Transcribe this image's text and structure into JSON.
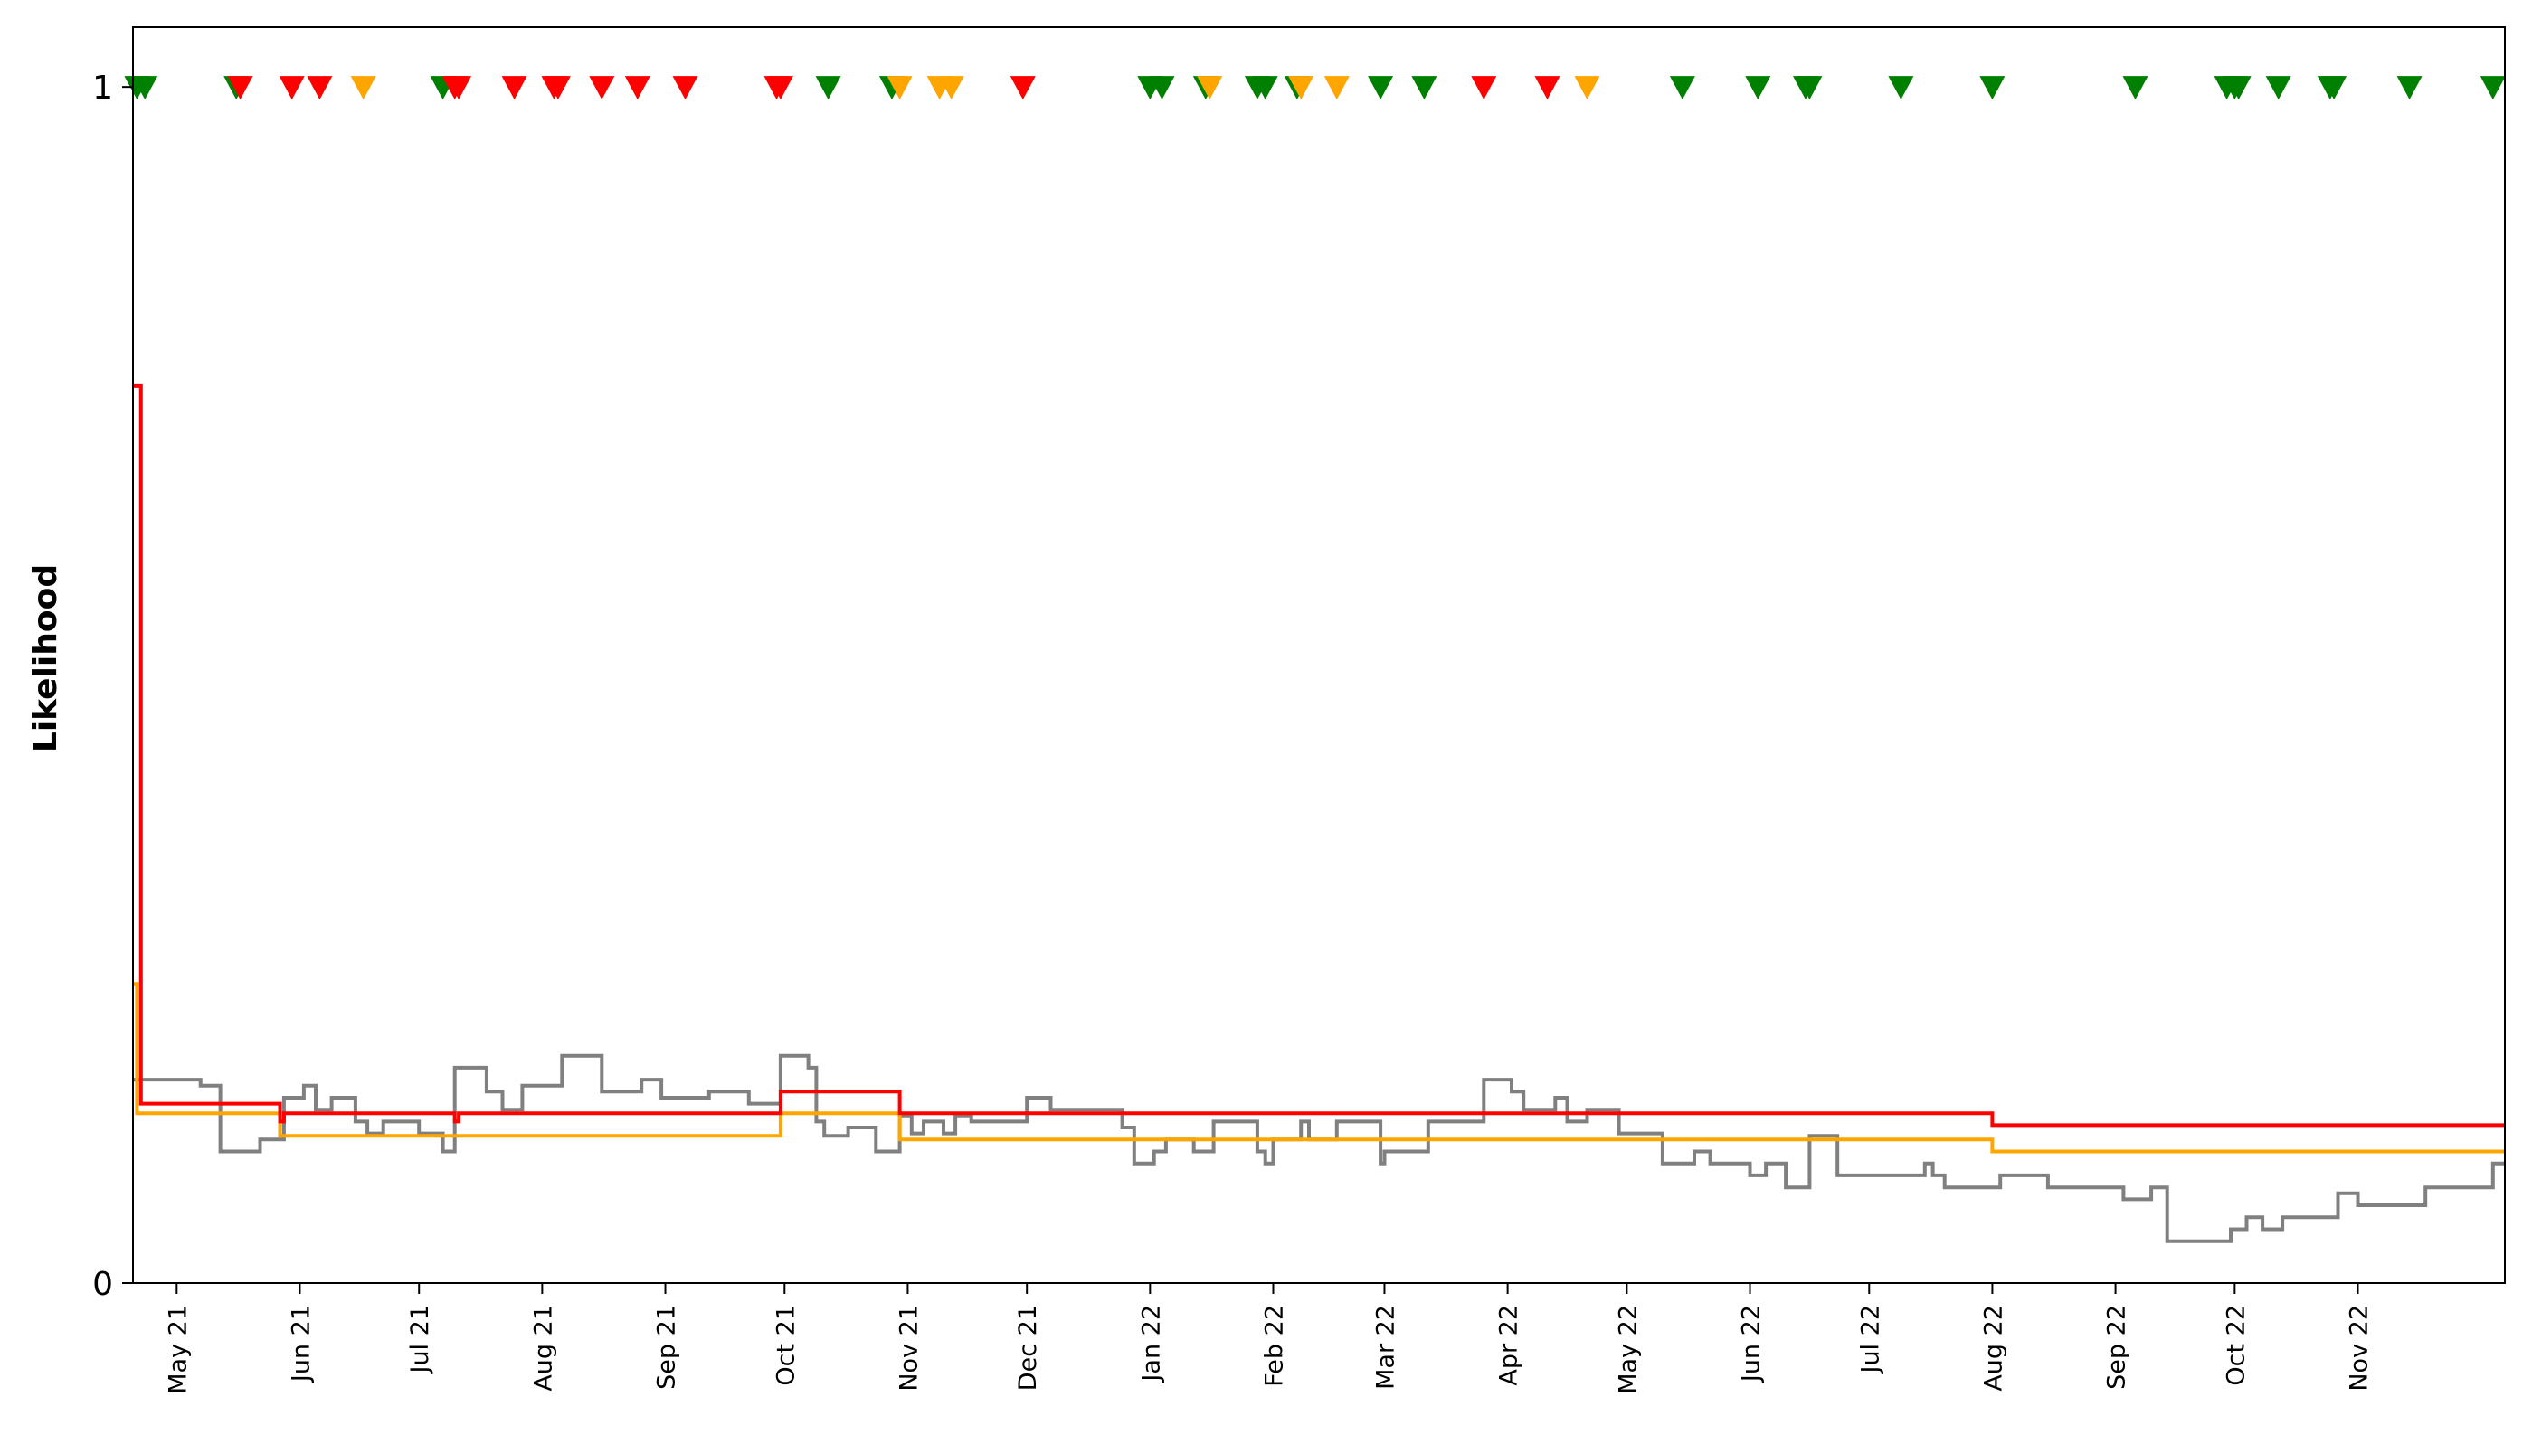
{
  "chart_data": {
    "type": "line",
    "title": "",
    "xlabel": "",
    "ylabel": "Likelihood",
    "xlim": [
      "2021-04-20",
      "2022-12-08"
    ],
    "ylim": [
      0,
      1.05
    ],
    "grid": false,
    "legend": "none",
    "y_ticks": [
      {
        "value": 0,
        "label": "0"
      },
      {
        "value": 1,
        "label": "1"
      }
    ],
    "x_ticks": [
      {
        "date": "2021-05-01",
        "label": "May 21"
      },
      {
        "date": "2021-06-01",
        "label": "Jun 21"
      },
      {
        "date": "2021-07-01",
        "label": "Jul 21"
      },
      {
        "date": "2021-08-01",
        "label": "Aug 21"
      },
      {
        "date": "2021-09-01",
        "label": "Sep 21"
      },
      {
        "date": "2021-10-01",
        "label": "Oct 21"
      },
      {
        "date": "2021-11-01",
        "label": "Nov 21"
      },
      {
        "date": "2021-12-01",
        "label": "Dec 21"
      },
      {
        "date": "2022-01-01",
        "label": "Jan 22"
      },
      {
        "date": "2022-02-01",
        "label": "Feb 22"
      },
      {
        "date": "2022-03-01",
        "label": "Mar 22"
      },
      {
        "date": "2022-04-01",
        "label": "Apr 22"
      },
      {
        "date": "2022-05-01",
        "label": "May 22"
      },
      {
        "date": "2022-06-01",
        "label": "Jun 22"
      },
      {
        "date": "2022-07-01",
        "label": "Jul 22"
      },
      {
        "date": "2022-08-01",
        "label": "Aug 22"
      },
      {
        "date": "2022-09-01",
        "label": "Sep 22"
      },
      {
        "date": "2022-10-01",
        "label": "Oct 22"
      },
      {
        "date": "2022-11-01",
        "label": "Nov 22"
      }
    ],
    "series": [
      {
        "color": "#ff0000",
        "step": true,
        "points": [
          [
            "2021-04-20",
            0.75
          ],
          [
            "2021-04-22",
            0.15
          ],
          [
            "2021-05-27",
            0.135
          ],
          [
            "2021-05-28",
            0.142
          ],
          [
            "2021-07-10",
            0.135
          ],
          [
            "2021-07-11",
            0.142
          ],
          [
            "2021-09-30",
            0.16
          ],
          [
            "2021-10-30",
            0.142
          ],
          [
            "2022-08-01",
            0.132
          ],
          [
            "2022-12-08",
            0.132
          ]
        ]
      },
      {
        "color": "#ffa500",
        "step": true,
        "points": [
          [
            "2021-04-20",
            0.25
          ],
          [
            "2021-04-21",
            0.142
          ],
          [
            "2021-05-27",
            0.123
          ],
          [
            "2021-09-30",
            0.142
          ],
          [
            "2021-10-30",
            0.12
          ],
          [
            "2022-08-01",
            0.11
          ],
          [
            "2022-12-08",
            0.11
          ]
        ]
      },
      {
        "color": "#808080",
        "step": true,
        "points": [
          [
            "2021-04-20",
            0.17
          ],
          [
            "2021-05-07",
            0.165
          ],
          [
            "2021-05-12",
            0.11
          ],
          [
            "2021-05-22",
            0.12
          ],
          [
            "2021-05-28",
            0.155
          ],
          [
            "2021-06-02",
            0.165
          ],
          [
            "2021-06-05",
            0.145
          ],
          [
            "2021-06-09",
            0.155
          ],
          [
            "2021-06-15",
            0.135
          ],
          [
            "2021-06-18",
            0.125
          ],
          [
            "2021-06-22",
            0.135
          ],
          [
            "2021-07-01",
            0.125
          ],
          [
            "2021-07-07",
            0.11
          ],
          [
            "2021-07-10",
            0.18
          ],
          [
            "2021-07-18",
            0.16
          ],
          [
            "2021-07-22",
            0.145
          ],
          [
            "2021-07-27",
            0.165
          ],
          [
            "2021-08-06",
            0.19
          ],
          [
            "2021-08-16",
            0.16
          ],
          [
            "2021-08-26",
            0.17
          ],
          [
            "2021-08-31",
            0.155
          ],
          [
            "2021-09-12",
            0.16
          ],
          [
            "2021-09-22",
            0.15
          ],
          [
            "2021-09-30",
            0.19
          ],
          [
            "2021-10-07",
            0.18
          ],
          [
            "2021-10-09",
            0.135
          ],
          [
            "2021-10-11",
            0.123
          ],
          [
            "2021-10-17",
            0.13
          ],
          [
            "2021-10-24",
            0.11
          ],
          [
            "2021-10-30",
            0.14
          ],
          [
            "2021-11-02",
            0.125
          ],
          [
            "2021-11-05",
            0.135
          ],
          [
            "2021-11-10",
            0.125
          ],
          [
            "2021-11-13",
            0.14
          ],
          [
            "2021-11-17",
            0.135
          ],
          [
            "2021-11-23",
            0.135
          ],
          [
            "2021-12-01",
            0.155
          ],
          [
            "2021-12-07",
            0.145
          ],
          [
            "2021-12-25",
            0.13
          ],
          [
            "2021-12-28",
            0.1
          ],
          [
            "2022-01-02",
            0.11
          ],
          [
            "2022-01-05",
            0.12
          ],
          [
            "2022-01-12",
            0.11
          ],
          [
            "2022-01-17",
            0.135
          ],
          [
            "2022-01-28",
            0.11
          ],
          [
            "2022-01-30",
            0.1
          ],
          [
            "2022-02-01",
            0.12
          ],
          [
            "2022-02-08",
            0.135
          ],
          [
            "2022-02-10",
            0.12
          ],
          [
            "2022-02-17",
            0.135
          ],
          [
            "2022-02-28",
            0.1
          ],
          [
            "2022-03-01",
            0.11
          ],
          [
            "2022-03-12",
            0.135
          ],
          [
            "2022-03-26",
            0.17
          ],
          [
            "2022-04-02",
            0.16
          ],
          [
            "2022-04-05",
            0.145
          ],
          [
            "2022-04-13",
            0.155
          ],
          [
            "2022-04-16",
            0.135
          ],
          [
            "2022-04-21",
            0.145
          ],
          [
            "2022-04-29",
            0.125
          ],
          [
            "2022-05-10",
            0.1
          ],
          [
            "2022-05-18",
            0.11
          ],
          [
            "2022-05-22",
            0.1
          ],
          [
            "2022-06-01",
            0.09
          ],
          [
            "2022-06-05",
            0.1
          ],
          [
            "2022-06-10",
            0.08
          ],
          [
            "2022-06-16",
            0.123
          ],
          [
            "2022-06-23",
            0.09
          ],
          [
            "2022-07-15",
            0.1
          ],
          [
            "2022-07-17",
            0.09
          ],
          [
            "2022-07-20",
            0.08
          ],
          [
            "2022-08-03",
            0.09
          ],
          [
            "2022-08-15",
            0.08
          ],
          [
            "2022-09-03",
            0.07
          ],
          [
            "2022-09-10",
            0.08
          ],
          [
            "2022-09-14",
            0.035
          ],
          [
            "2022-09-30",
            0.045
          ],
          [
            "2022-10-04",
            0.055
          ],
          [
            "2022-10-08",
            0.045
          ],
          [
            "2022-10-13",
            0.055
          ],
          [
            "2022-10-27",
            0.075
          ],
          [
            "2022-11-01",
            0.065
          ],
          [
            "2022-11-18",
            0.08
          ],
          [
            "2022-12-05",
            0.1
          ],
          [
            "2022-12-08",
            0.1
          ]
        ]
      }
    ],
    "markers": {
      "shape": "triangle-down",
      "y": 1,
      "points": [
        {
          "date": "2021-04-21",
          "color": "#008000"
        },
        {
          "date": "2021-04-23",
          "color": "#008000"
        },
        {
          "date": "2021-05-16",
          "color": "#008000"
        },
        {
          "date": "2021-05-17",
          "color": "#ff0000"
        },
        {
          "date": "2021-05-30",
          "color": "#ff0000"
        },
        {
          "date": "2021-06-06",
          "color": "#ff0000"
        },
        {
          "date": "2021-06-17",
          "color": "#ffa500"
        },
        {
          "date": "2021-07-07",
          "color": "#008000"
        },
        {
          "date": "2021-07-10",
          "color": "#ff0000"
        },
        {
          "date": "2021-07-11",
          "color": "#ff0000"
        },
        {
          "date": "2021-07-25",
          "color": "#ff0000"
        },
        {
          "date": "2021-08-04",
          "color": "#ff0000"
        },
        {
          "date": "2021-08-05",
          "color": "#ff0000"
        },
        {
          "date": "2021-08-16",
          "color": "#ff0000"
        },
        {
          "date": "2021-08-25",
          "color": "#ff0000"
        },
        {
          "date": "2021-09-06",
          "color": "#ff0000"
        },
        {
          "date": "2021-09-29",
          "color": "#ff0000"
        },
        {
          "date": "2021-09-30",
          "color": "#ff0000"
        },
        {
          "date": "2021-10-12",
          "color": "#008000"
        },
        {
          "date": "2021-10-28",
          "color": "#008000"
        },
        {
          "date": "2021-10-30",
          "color": "#ffa500"
        },
        {
          "date": "2021-11-09",
          "color": "#ffa500"
        },
        {
          "date": "2021-11-12",
          "color": "#ffa500"
        },
        {
          "date": "2021-11-30",
          "color": "#ff0000"
        },
        {
          "date": "2022-01-01",
          "color": "#008000"
        },
        {
          "date": "2022-01-04",
          "color": "#008000"
        },
        {
          "date": "2022-01-15",
          "color": "#008000"
        },
        {
          "date": "2022-01-16",
          "color": "#ffa500"
        },
        {
          "date": "2022-01-28",
          "color": "#008000"
        },
        {
          "date": "2022-01-30",
          "color": "#008000"
        },
        {
          "date": "2022-02-07",
          "color": "#008000"
        },
        {
          "date": "2022-02-08",
          "color": "#ffa500"
        },
        {
          "date": "2022-02-17",
          "color": "#ffa500"
        },
        {
          "date": "2022-02-28",
          "color": "#008000"
        },
        {
          "date": "2022-03-11",
          "color": "#008000"
        },
        {
          "date": "2022-03-26",
          "color": "#ff0000"
        },
        {
          "date": "2022-04-11",
          "color": "#ff0000"
        },
        {
          "date": "2022-04-21",
          "color": "#ffa500"
        },
        {
          "date": "2022-05-15",
          "color": "#008000"
        },
        {
          "date": "2022-06-03",
          "color": "#008000"
        },
        {
          "date": "2022-06-15",
          "color": "#008000"
        },
        {
          "date": "2022-06-16",
          "color": "#008000"
        },
        {
          "date": "2022-07-09",
          "color": "#008000"
        },
        {
          "date": "2022-08-01",
          "color": "#008000"
        },
        {
          "date": "2022-09-06",
          "color": "#008000"
        },
        {
          "date": "2022-09-29",
          "color": "#008000"
        },
        {
          "date": "2022-10-01",
          "color": "#008000"
        },
        {
          "date": "2022-10-02",
          "color": "#008000"
        },
        {
          "date": "2022-10-12",
          "color": "#008000"
        },
        {
          "date": "2022-10-25",
          "color": "#008000"
        },
        {
          "date": "2022-10-26",
          "color": "#008000"
        },
        {
          "date": "2022-11-14",
          "color": "#008000"
        },
        {
          "date": "2022-12-05",
          "color": "#008000"
        }
      ]
    }
  }
}
